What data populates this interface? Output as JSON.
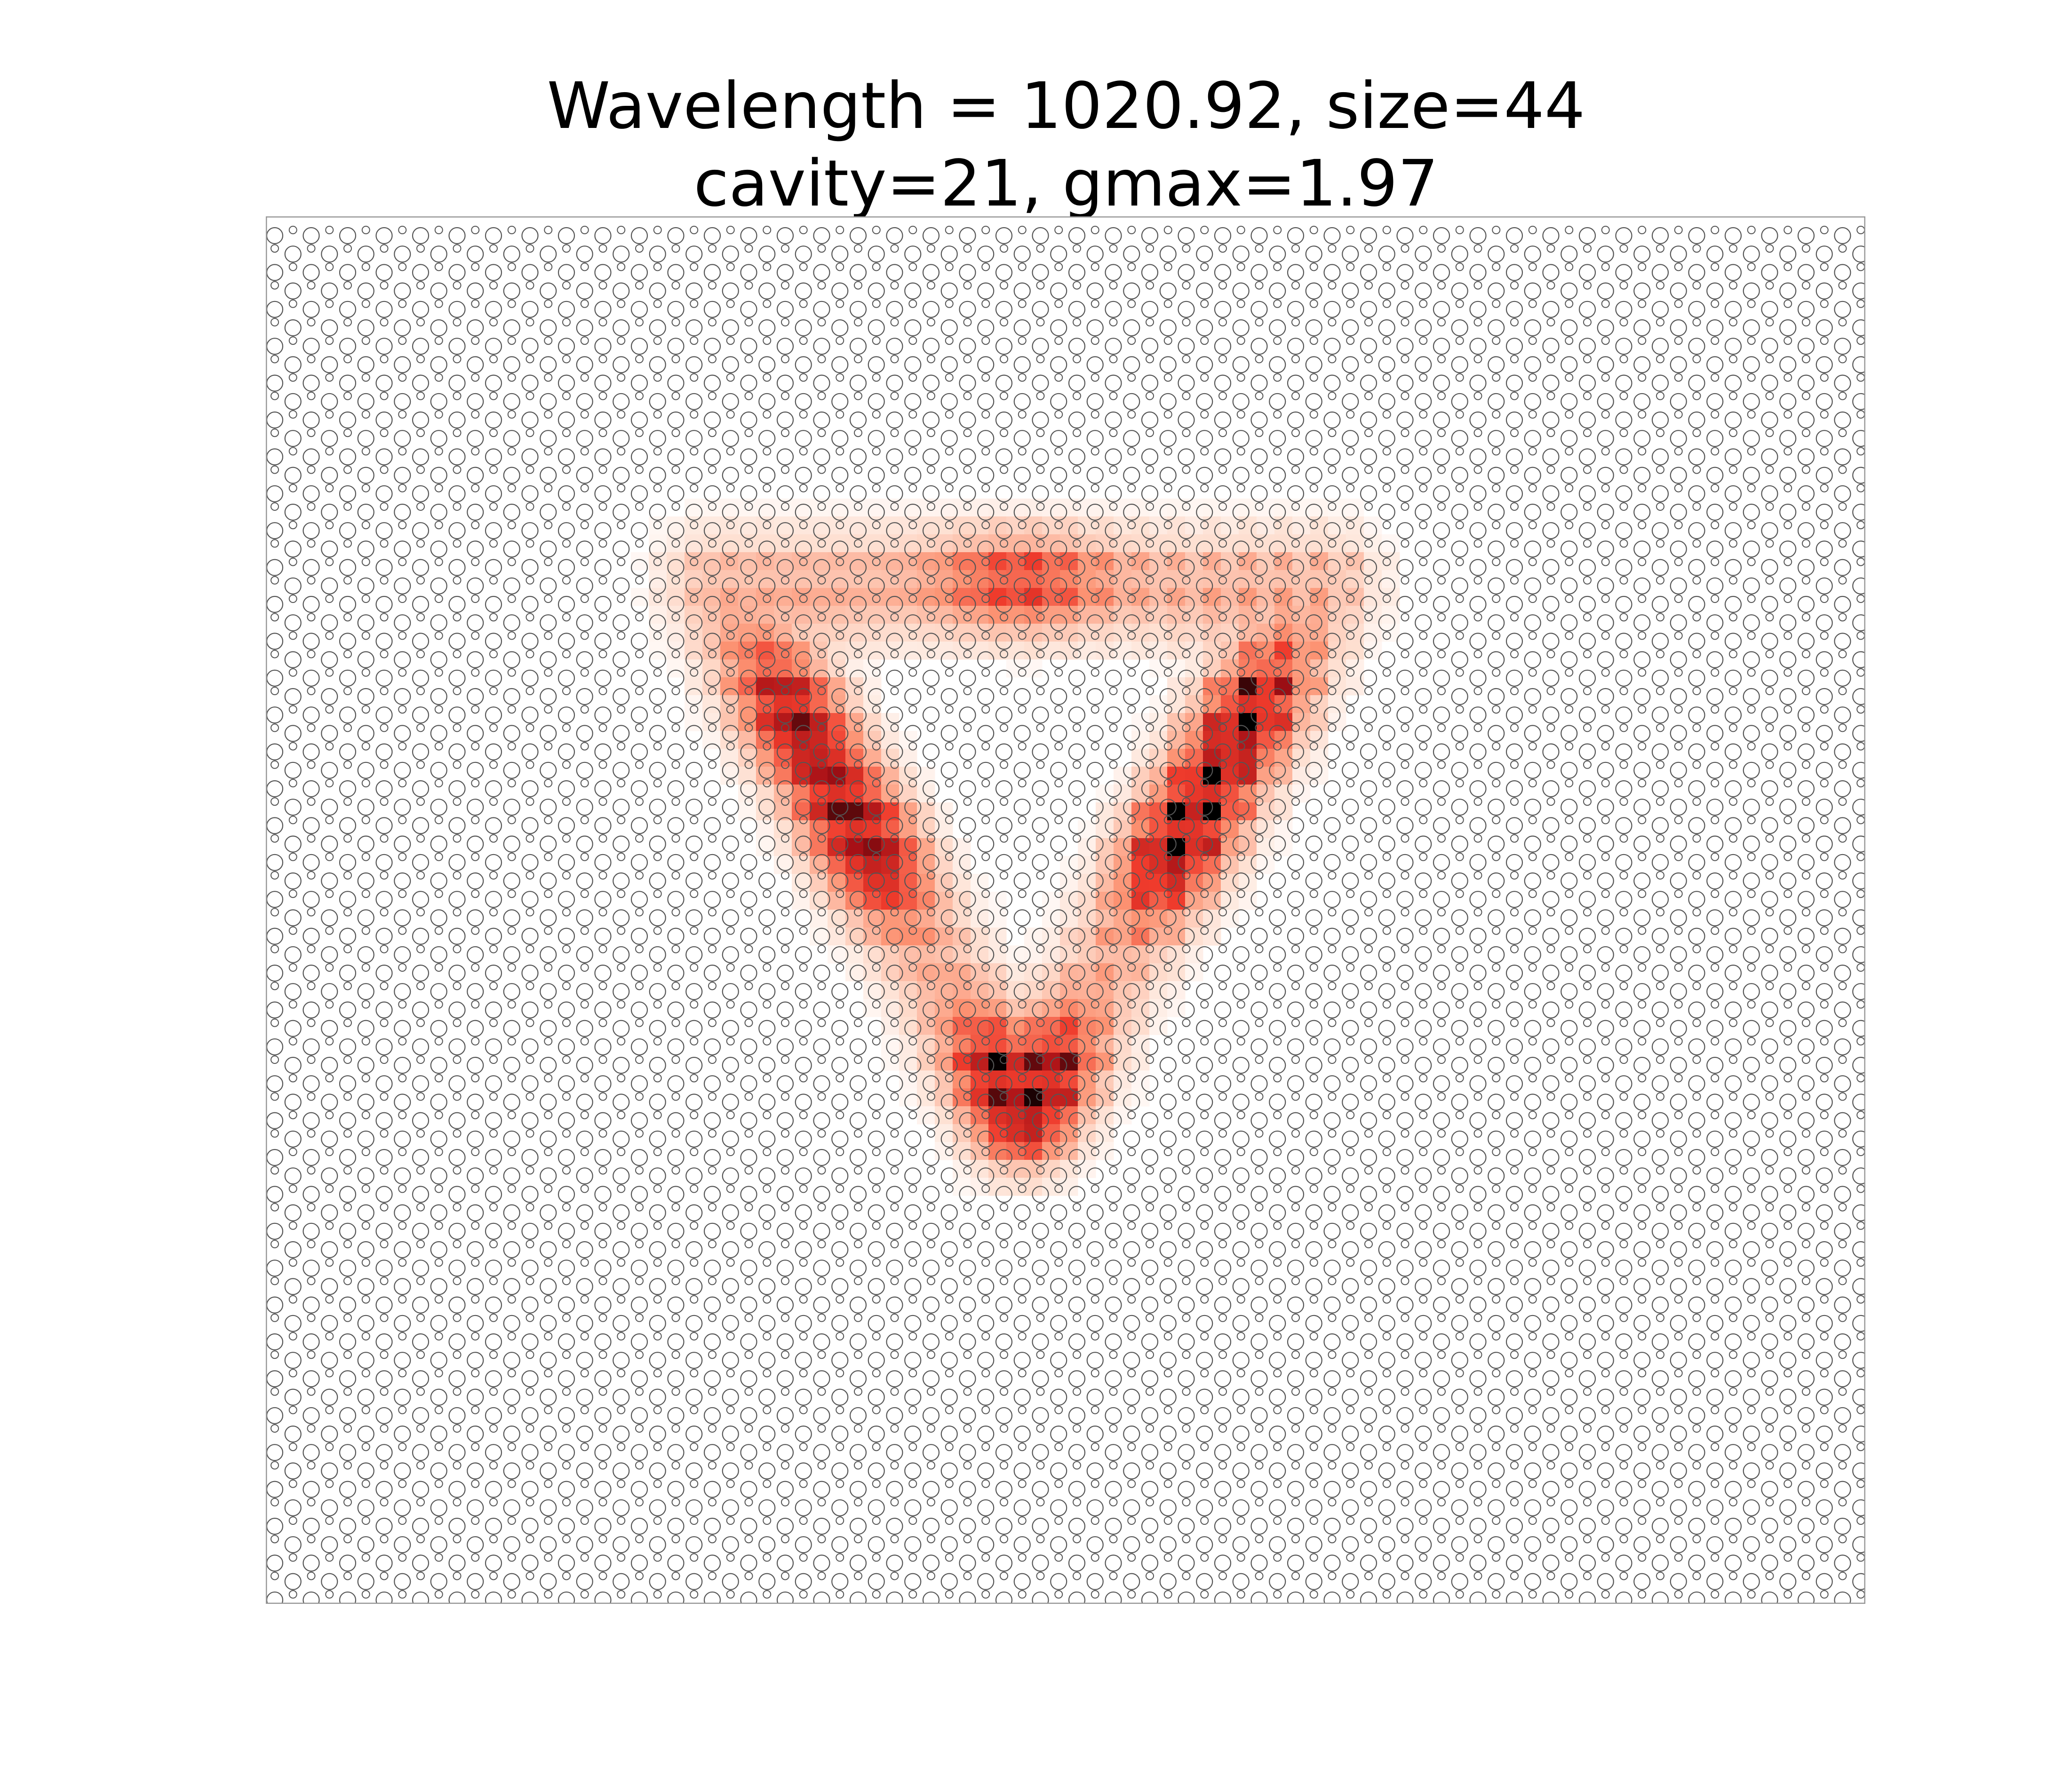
{
  "chart_data": {
    "type": "heatmap",
    "title_lines": [
      "Wavelength = 1020.92, size=44",
      "cavity=21, gmax=1.97"
    ],
    "xlabel": "",
    "ylabel": "",
    "axes_visible": false,
    "grid": false,
    "legend": "none",
    "colormap": "Reds",
    "colormap_stops": [
      "#ffffff",
      "#fee0d2",
      "#fc9272",
      "#ef3b2c",
      "#a50f15",
      "#000000"
    ],
    "frame_color": "#999999",
    "overlay": {
      "type": "hexagonal lattice of air holes (two alternating hole sizes)",
      "stroke_color": "#555555"
    },
    "field_pattern": "triangular ring mode around central cavity",
    "field_hotspots": [
      {
        "location": "left arm, lower",
        "relative_intensity": 1.0
      },
      {
        "location": "right arm, lower",
        "relative_intensity": 1.0
      },
      {
        "location": "left arm, middle",
        "relative_intensity": 0.8
      },
      {
        "location": "right arm, middle",
        "relative_intensity": 0.8
      },
      {
        "location": "top edge",
        "relative_intensity": 0.55
      },
      {
        "location": "bottom apex",
        "relative_intensity": 0.6
      }
    ]
  }
}
